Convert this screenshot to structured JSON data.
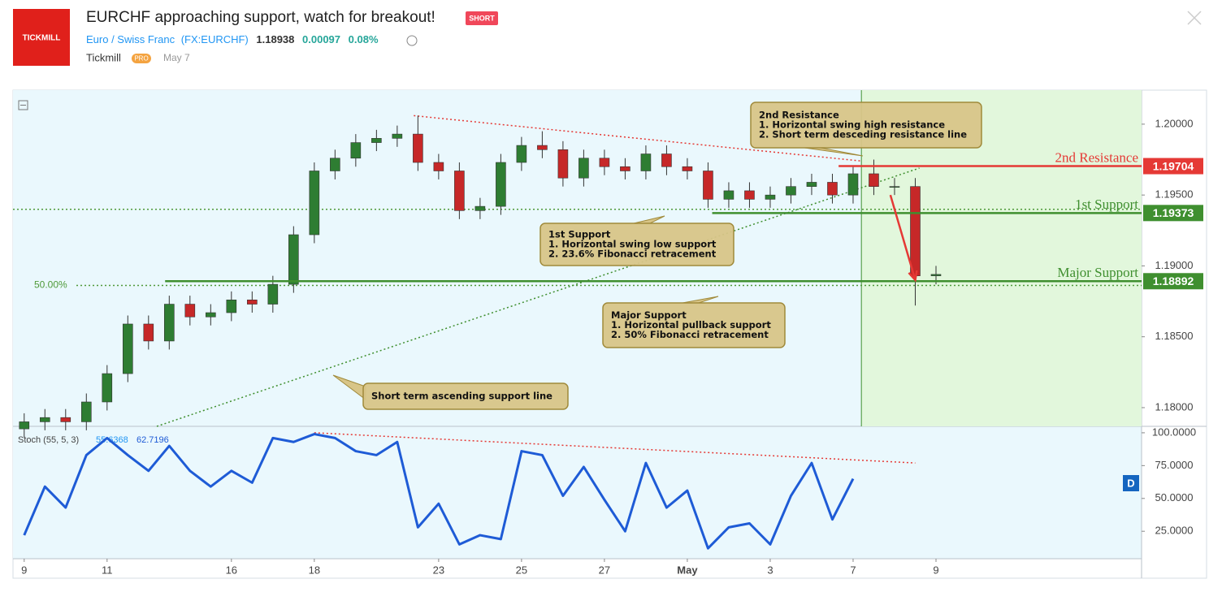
{
  "header": {
    "logo": "TICKMILL",
    "title": "EURCHF approaching support, watch for breakout!",
    "badge": "SHORT",
    "symbol_name": "Euro / Swiss Franc",
    "ticker": "(FX:EURCHF)",
    "price": "1.18938",
    "change": "0.00097",
    "change_pct": "0.08%",
    "author": "Tickmill",
    "author_badge": "PRO",
    "date": "May 7"
  },
  "interval": "D",
  "chart_data": [
    {
      "type": "candlestick",
      "x": [
        0,
        0.5,
        1,
        1.5,
        2,
        2.5,
        3,
        3.5,
        4,
        4.5,
        5,
        5.5,
        6,
        6.5,
        7,
        7.5,
        8,
        8.5,
        9,
        9.5,
        10,
        10.5,
        11,
        11.5,
        12,
        12.5,
        13,
        13.5,
        14,
        14.5,
        15,
        15.5,
        16,
        16.5,
        17,
        17.5,
        18,
        18.5,
        19,
        19.5,
        20,
        20.5,
        21,
        21.5,
        22
      ],
      "open": [
        1.1785,
        1.179,
        1.1793,
        1.179,
        1.1804,
        1.1824,
        1.1859,
        1.1847,
        1.1873,
        1.1864,
        1.1867,
        1.1876,
        1.1873,
        1.1887,
        1.1922,
        1.1967,
        1.1976,
        1.1987,
        1.199,
        1.1993,
        1.1973,
        1.1967,
        1.1939,
        1.1942,
        1.1973,
        1.1985,
        1.1982,
        1.1962,
        1.1976,
        1.197,
        1.1967,
        1.1979,
        1.197,
        1.1967,
        1.1947,
        1.1953,
        1.1947,
        1.195,
        1.1956,
        1.1959,
        1.195,
        1.1965,
        1.1956,
        1.1956,
        1.1893
      ],
      "high": [
        1.1796,
        1.1799,
        1.1799,
        1.181,
        1.183,
        1.1865,
        1.1865,
        1.1879,
        1.1879,
        1.1873,
        1.1882,
        1.1882,
        1.1893,
        1.1928,
        1.1973,
        1.1982,
        1.1993,
        1.1996,
        1.1999,
        1.2006,
        1.1979,
        1.1973,
        1.1948,
        1.1979,
        1.1991,
        1.1995,
        1.1988,
        1.1982,
        1.1982,
        1.1976,
        1.1985,
        1.1985,
        1.1976,
        1.1973,
        1.1959,
        1.1959,
        1.1956,
        1.1962,
        1.1965,
        1.1965,
        1.1971,
        1.1975,
        1.1962,
        1.1962,
        1.19
      ],
      "low": [
        1.1779,
        1.1784,
        1.1784,
        1.1784,
        1.1798,
        1.1818,
        1.1841,
        1.1841,
        1.1858,
        1.1858,
        1.1861,
        1.1867,
        1.1867,
        1.1881,
        1.1916,
        1.1961,
        1.197,
        1.1981,
        1.1984,
        1.1967,
        1.1961,
        1.1933,
        1.1933,
        1.1936,
        1.1967,
        1.1976,
        1.1956,
        1.1956,
        1.1964,
        1.1961,
        1.1961,
        1.1964,
        1.1961,
        1.1941,
        1.1941,
        1.1941,
        1.1941,
        1.1944,
        1.195,
        1.1944,
        1.1944,
        1.195,
        1.195,
        1.1872,
        1.1887
      ],
      "close": [
        1.179,
        1.1793,
        1.179,
        1.1804,
        1.1824,
        1.1859,
        1.1847,
        1.1873,
        1.1864,
        1.1867,
        1.1876,
        1.1873,
        1.1887,
        1.1922,
        1.1967,
        1.1976,
        1.1987,
        1.199,
        1.1993,
        1.1973,
        1.1967,
        1.1939,
        1.1942,
        1.1973,
        1.1985,
        1.1982,
        1.1962,
        1.1976,
        1.197,
        1.1967,
        1.1979,
        1.197,
        1.1967,
        1.1947,
        1.1953,
        1.1947,
        1.195,
        1.1956,
        1.1959,
        1.195,
        1.1965,
        1.1956,
        1.1956,
        1.1893,
        1.1894
      ],
      "up_color": "#2e7d32",
      "down_color": "#c62828",
      "xlim": [
        -0.27,
        26.96
      ],
      "ylim": [
        1.17868,
        1.2024
      ],
      "yticks": [
        {
          "value": 1.2,
          "label": "1.20000"
        },
        {
          "value": 1.195,
          "label": "1.19500"
        },
        {
          "value": 1.19,
          "label": "1.19000"
        },
        {
          "value": 1.185,
          "label": "1.18500"
        },
        {
          "value": 1.18,
          "label": "1.18000"
        }
      ],
      "levels": [
        {
          "name": "2nd Resistance",
          "value": 1.19704,
          "start": 19.65,
          "color": "#e53935"
        },
        {
          "name": "1st Support",
          "value": 1.19373,
          "start": 16.6,
          "color": "#3f8f2f"
        },
        {
          "name": "Major Support",
          "value": 1.18892,
          "start": 3.4,
          "color": "#3f8f2f"
        }
      ],
      "fib_levels": [
        {
          "value": 1.18862,
          "label": "50.00%"
        },
        {
          "value": 1.19399
        }
      ],
      "trendlines": [
        {
          "x": [
            9.4,
            20.2
          ],
          "y": [
            1.2006,
            1.1974
          ],
          "color": "#e53935"
        },
        {
          "x": [
            3.2,
            21.6
          ],
          "y": [
            1.17868,
            1.1969
          ],
          "color": "#3f8f2f"
        }
      ],
      "arrow": {
        "x": [
          20.9,
          21.5
        ],
        "y": [
          1.195,
          1.189
        ],
        "color": "#e53935"
      },
      "highlight_from": 20.2,
      "callouts": [
        {
          "lines": [
            "2nd Resistance",
            "1. Horizontal swing high resistance",
            "2. Short term desceding resistance line"
          ]
        },
        {
          "lines": [
            "1st Support",
            "1. Horizontal swing low support",
            "2. 23.6% Fibonacci retracement"
          ]
        },
        {
          "lines": [
            "Major Support",
            "1. Horizontal pullback support",
            "2. 50% Fibonacci retracement"
          ]
        },
        {
          "lines": [
            "Short term ascending support line"
          ]
        }
      ]
    },
    {
      "type": "line",
      "name": "Stoch (55, 5, 3)",
      "legend_values": [
        55.6368,
        62.7196
      ],
      "color": "#1e5bd6",
      "x": [
        0,
        0.5,
        1,
        1.5,
        2,
        2.5,
        3,
        3.5,
        4,
        4.5,
        5,
        5.5,
        6,
        6.5,
        7,
        7.5,
        8,
        8.5,
        9,
        9.5,
        10,
        10.5,
        11,
        11.5,
        12,
        12.5,
        13,
        13.5,
        14,
        14.5,
        15,
        15.5,
        16,
        16.5,
        17,
        17.5,
        18,
        18.5,
        19,
        19.5,
        20
      ],
      "values": [
        22,
        59,
        43,
        83,
        96,
        83,
        71,
        90,
        71,
        59,
        71,
        62,
        96,
        93,
        99,
        96,
        86,
        83,
        93,
        28,
        46,
        15,
        22,
        19,
        86,
        83,
        52,
        74,
        49,
        25,
        77,
        43,
        56,
        12,
        28,
        31,
        15,
        52,
        77,
        34,
        65
      ],
      "xlim": [
        -0.27,
        26.96
      ],
      "ylim": [
        4.1,
        104.9
      ],
      "yticks": [
        {
          "value": 100,
          "label": "100.0000"
        },
        {
          "value": 75,
          "label": "75.0000"
        },
        {
          "value": 50,
          "label": "50.0000"
        },
        {
          "value": 25,
          "label": "25.0000"
        }
      ],
      "xticks": [
        {
          "value": 0,
          "label": "9"
        },
        {
          "value": 2,
          "label": "11"
        },
        {
          "value": 5,
          "label": "16"
        },
        {
          "value": 7,
          "label": "18"
        },
        {
          "value": 10,
          "label": "23"
        },
        {
          "value": 12,
          "label": "25"
        },
        {
          "value": 14,
          "label": "27"
        },
        {
          "value": 16,
          "label": "May"
        },
        {
          "value": 18,
          "label": "3"
        },
        {
          "value": 20,
          "label": "7"
        },
        {
          "value": 22,
          "label": "9"
        }
      ],
      "trendline": {
        "x": [
          7,
          21.5
        ],
        "y": [
          100,
          77
        ],
        "color": "#e53935"
      }
    }
  ]
}
